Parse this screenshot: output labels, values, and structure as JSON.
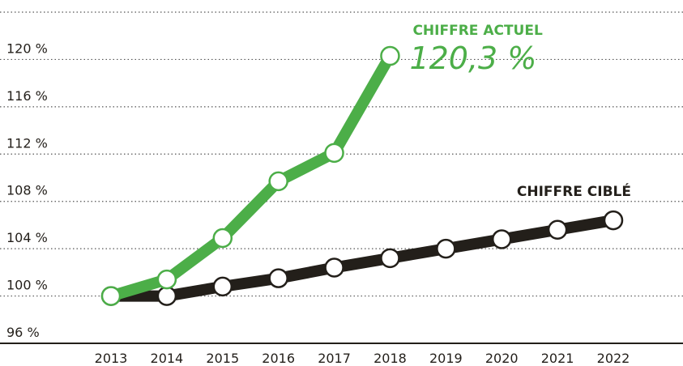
{
  "chart_data": {
    "type": "line",
    "categories": [
      "2013",
      "2014",
      "2015",
      "2016",
      "2017",
      "2018",
      "2019",
      "2020",
      "2021",
      "2022"
    ],
    "series": [
      {
        "name": "CHIFFRE CIBLÉ",
        "color": "#231f1a",
        "values": [
          100,
          100,
          100.8,
          101.5,
          102.4,
          103.2,
          104.0,
          104.8,
          105.6,
          106.4
        ]
      },
      {
        "name": "CHIFFRE ACTUEL",
        "color": "#4cae48",
        "values": [
          100,
          101.4,
          104.9,
          109.7,
          112.1,
          120.3,
          null,
          null,
          null,
          null
        ],
        "value_labels": [
          null,
          null,
          null,
          null,
          null,
          "120,3 %",
          null,
          null,
          null,
          null
        ]
      }
    ],
    "ylim": [
      96,
      124
    ],
    "yticks": [
      {
        "value": 96,
        "label": "96 %"
      },
      {
        "value": 100,
        "label": "100 %"
      },
      {
        "value": 104,
        "label": "104 %"
      },
      {
        "value": 108,
        "label": "108 %"
      },
      {
        "value": 112,
        "label": "112 %"
      },
      {
        "value": 116,
        "label": "116 %"
      },
      {
        "value": 120,
        "label": "120 %"
      }
    ],
    "grid": true
  }
}
